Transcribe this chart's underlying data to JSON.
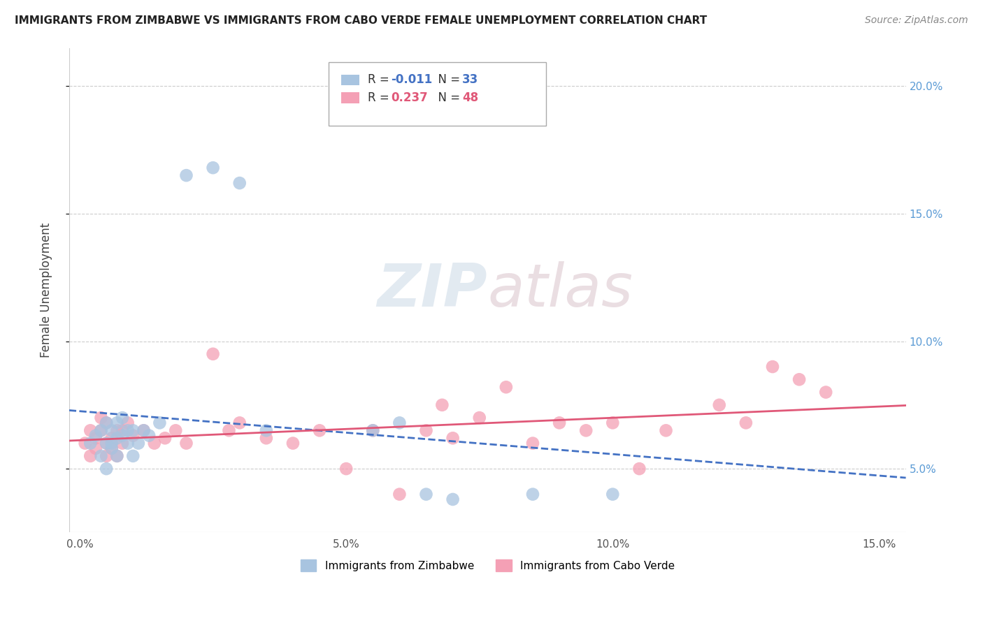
{
  "title": "IMMIGRANTS FROM ZIMBABWE VS IMMIGRANTS FROM CABO VERDE FEMALE UNEMPLOYMENT CORRELATION CHART",
  "source": "Source: ZipAtlas.com",
  "ylabel": "Female Unemployment",
  "legend_label_blue": "Immigrants from Zimbabwe",
  "legend_label_pink": "Immigrants from Cabo Verde",
  "R_blue": -0.011,
  "N_blue": 33,
  "R_pink": 0.237,
  "N_pink": 48,
  "y_ticks": [
    0.05,
    0.1,
    0.15,
    0.2
  ],
  "y_tick_labels": [
    "5.0%",
    "10.0%",
    "15.0%",
    "20.0%"
  ],
  "x_ticks": [
    0.0,
    0.05,
    0.1,
    0.15
  ],
  "x_tick_labels": [
    "0.0%",
    "5.0%",
    "10.0%",
    "15.0%"
  ],
  "xlim": [
    -0.002,
    0.155
  ],
  "ylim": [
    0.025,
    0.215
  ],
  "color_blue": "#a8c4e0",
  "color_pink": "#f4a0b5",
  "line_color_blue": "#4472c4",
  "line_color_pink": "#e05878",
  "background_color": "#ffffff",
  "grid_color": "#cccccc",
  "watermark": "ZIPatlas",
  "scatter_blue_x": [
    0.002,
    0.003,
    0.004,
    0.004,
    0.005,
    0.005,
    0.005,
    0.006,
    0.006,
    0.006,
    0.007,
    0.007,
    0.007,
    0.008,
    0.008,
    0.009,
    0.009,
    0.01,
    0.01,
    0.011,
    0.012,
    0.013,
    0.015,
    0.02,
    0.025,
    0.03,
    0.035,
    0.055,
    0.06,
    0.065,
    0.07,
    0.085,
    0.1
  ],
  "scatter_blue_y": [
    0.06,
    0.063,
    0.065,
    0.055,
    0.06,
    0.068,
    0.05,
    0.058,
    0.065,
    0.06,
    0.062,
    0.068,
    0.055,
    0.063,
    0.07,
    0.065,
    0.06,
    0.065,
    0.055,
    0.06,
    0.065,
    0.063,
    0.068,
    0.165,
    0.168,
    0.162,
    0.065,
    0.065,
    0.068,
    0.04,
    0.038,
    0.04,
    0.04
  ],
  "scatter_pink_x": [
    0.001,
    0.002,
    0.002,
    0.003,
    0.003,
    0.004,
    0.004,
    0.005,
    0.005,
    0.005,
    0.006,
    0.006,
    0.007,
    0.007,
    0.008,
    0.008,
    0.009,
    0.01,
    0.012,
    0.014,
    0.016,
    0.018,
    0.02,
    0.025,
    0.028,
    0.03,
    0.035,
    0.04,
    0.045,
    0.05,
    0.055,
    0.06,
    0.065,
    0.068,
    0.07,
    0.075,
    0.08,
    0.085,
    0.09,
    0.095,
    0.1,
    0.105,
    0.11,
    0.12,
    0.125,
    0.13,
    0.135,
    0.14
  ],
  "scatter_pink_y": [
    0.06,
    0.055,
    0.065,
    0.062,
    0.058,
    0.07,
    0.065,
    0.06,
    0.055,
    0.068,
    0.058,
    0.062,
    0.065,
    0.055,
    0.06,
    0.065,
    0.068,
    0.063,
    0.065,
    0.06,
    0.062,
    0.065,
    0.06,
    0.095,
    0.065,
    0.068,
    0.062,
    0.06,
    0.065,
    0.05,
    0.065,
    0.04,
    0.065,
    0.075,
    0.062,
    0.07,
    0.082,
    0.06,
    0.068,
    0.065,
    0.068,
    0.05,
    0.065,
    0.075,
    0.068,
    0.09,
    0.085,
    0.08
  ]
}
